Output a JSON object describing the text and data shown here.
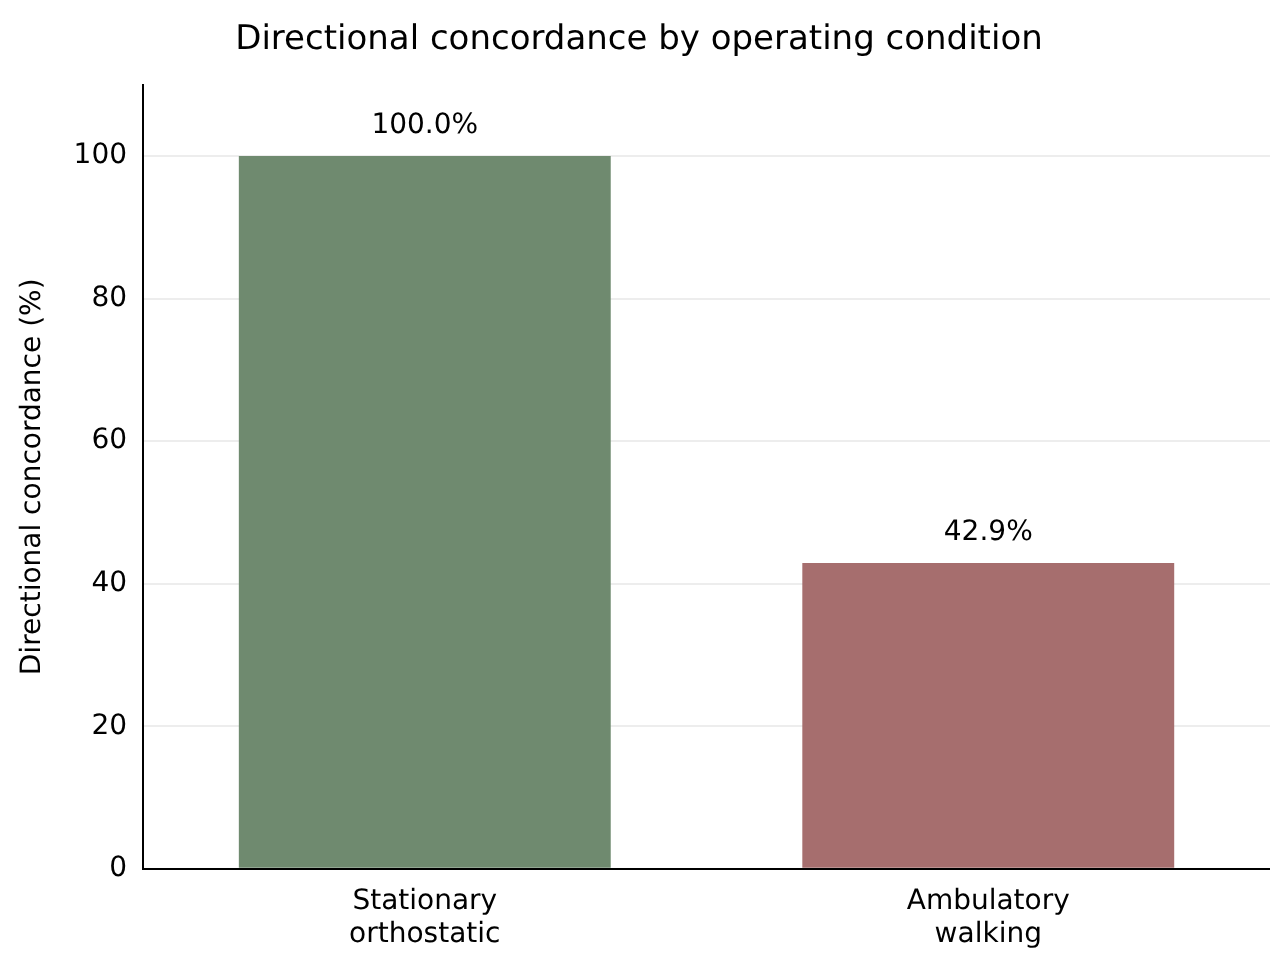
{
  "chart_data": {
    "type": "bar",
    "title": "Directional concordance by operating condition",
    "ylabel": "Directional concordance (%)",
    "categories": [
      "Stationary\northostatic",
      "Ambulatory\nwalking"
    ],
    "values": [
      100.0,
      42.9
    ],
    "colors": [
      "#6f8a6f",
      "#a66e6e"
    ],
    "value_labels": [
      "100.0%",
      "42.9%"
    ],
    "ylim": [
      0,
      110
    ],
    "yticks": [
      0,
      20,
      40,
      60,
      80,
      100
    ],
    "grid": "y",
    "legend": false
  }
}
